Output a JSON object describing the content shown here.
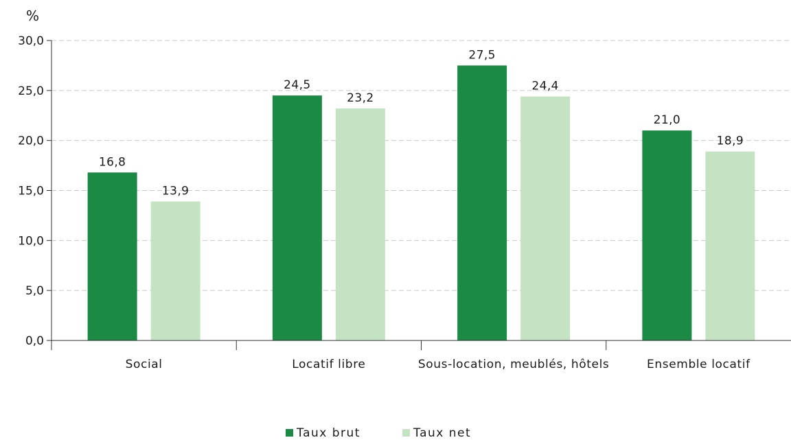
{
  "chart_data": {
    "type": "bar",
    "unit_label": "%",
    "categories": [
      "Social",
      "Locatif libre",
      "Sous-location, meublés, hôtels",
      "Ensemble locatif"
    ],
    "series": [
      {
        "name": "Taux brut",
        "color": "#1b8a45",
        "values": [
          16.8,
          24.5,
          27.5,
          21.0
        ],
        "labels": [
          "16,8",
          "24,5",
          "27,5",
          "21,0"
        ]
      },
      {
        "name": "Taux net",
        "color": "#c4e3c3",
        "values": [
          13.9,
          23.2,
          24.4,
          18.9
        ],
        "labels": [
          "13,9",
          "23,2",
          "24,4",
          "18,9"
        ]
      }
    ],
    "ylim": [
      0,
      30
    ],
    "yticks": [
      0,
      5,
      10,
      15,
      20,
      25,
      30
    ],
    "ytick_labels": [
      "0,0",
      "5,0",
      "10,0",
      "15,0",
      "20,0",
      "25,0",
      "30,0"
    ],
    "grid": true,
    "legend_position": "bottom"
  }
}
